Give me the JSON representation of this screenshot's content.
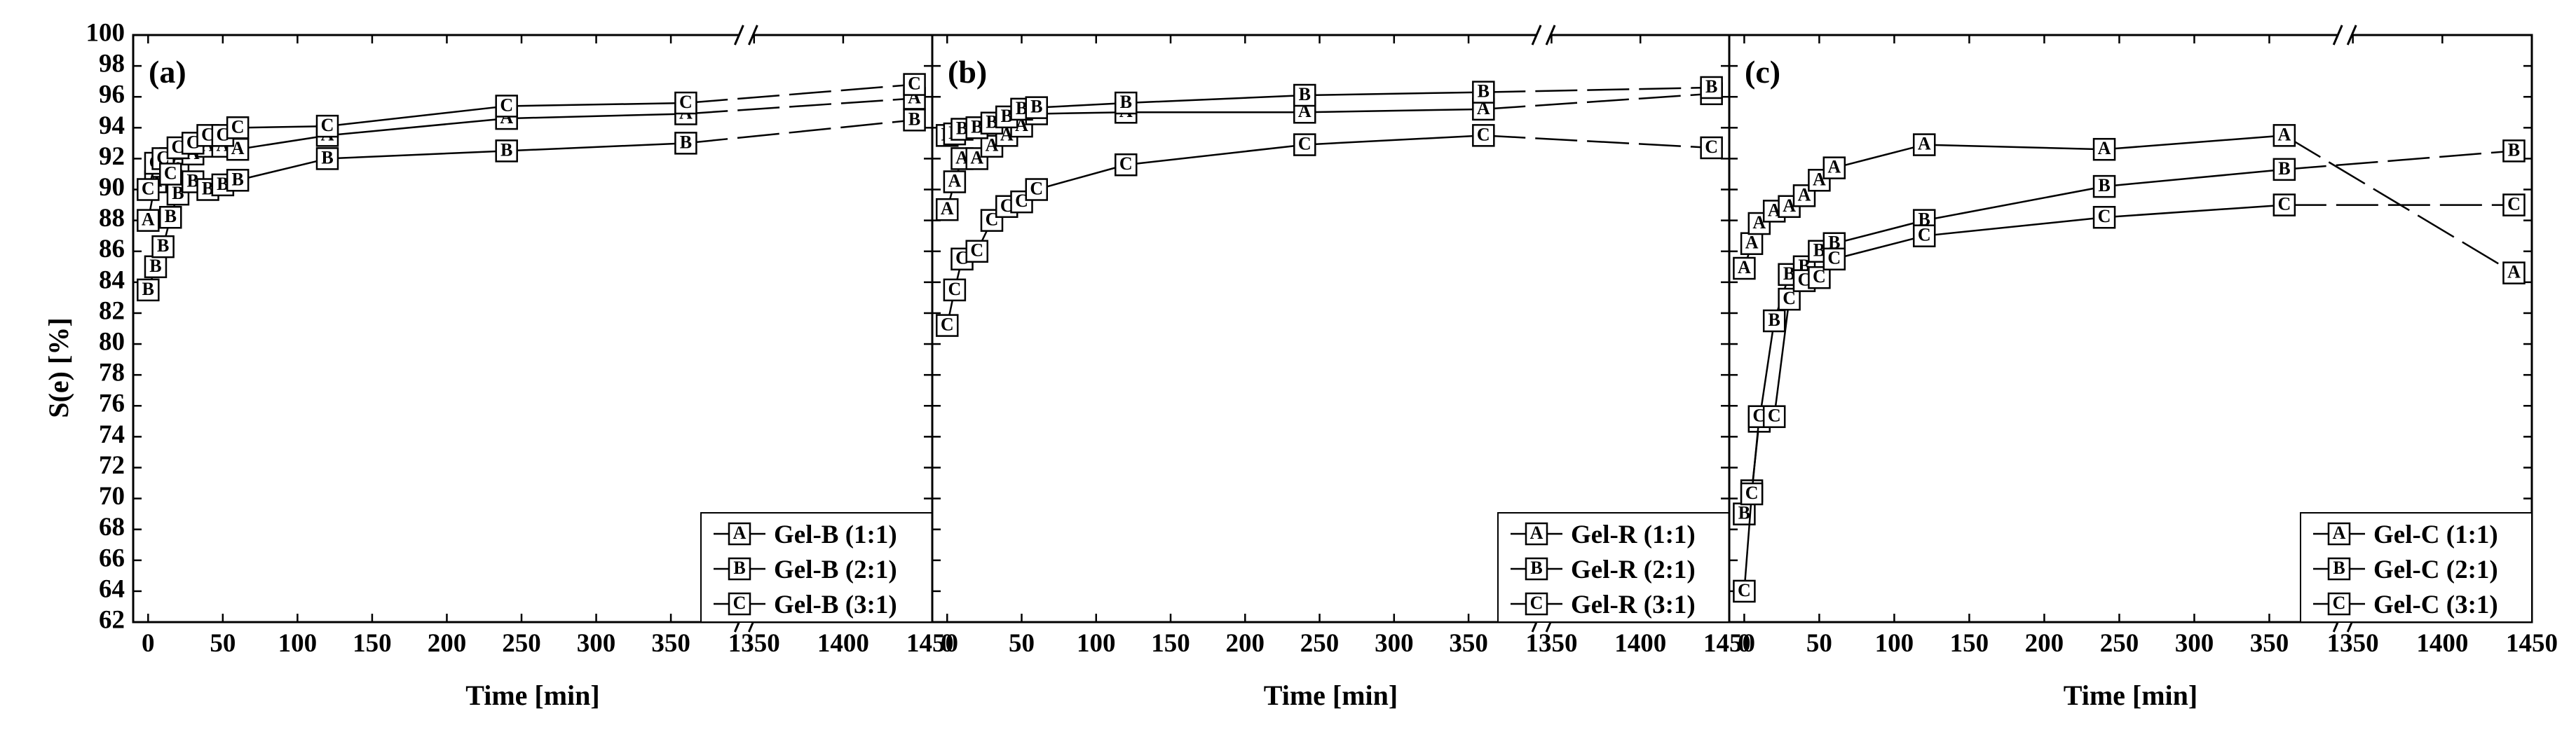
{
  "chart_data": {
    "type": "line",
    "ylabel": "S(e) [%]",
    "xlabel": "Time [min]",
    "ylim": [
      62,
      100
    ],
    "ytick_step": 2,
    "xbreak": {
      "segment1": [
        -10,
        395
      ],
      "segment2": [
        1350,
        1450
      ]
    },
    "xticks_segment1": [
      0,
      50,
      100,
      150,
      200,
      250,
      300,
      350
    ],
    "xticks_segment2": [
      1350,
      1400,
      1450
    ],
    "panels": [
      {
        "tag": "(a)",
        "series": [
          {
            "name": "Gel-B (1:1)",
            "marker": "A",
            "x": [
              0,
              5,
              10,
              15,
              20,
              30,
              40,
              50,
              60,
              120,
              240,
              360,
              1440
            ],
            "y": [
              88.0,
              90.5,
              91.5,
              92.0,
              91.3,
              92.3,
              92.8,
              92.8,
              92.6,
              93.5,
              94.6,
              94.9,
              95.9
            ]
          },
          {
            "name": "Gel-B (2:1)",
            "marker": "B",
            "x": [
              0,
              5,
              10,
              15,
              20,
              30,
              40,
              50,
              60,
              120,
              240,
              360,
              1440
            ],
            "y": [
              83.5,
              85.0,
              86.3,
              88.2,
              89.7,
              90.5,
              90.0,
              90.3,
              90.6,
              92.0,
              92.5,
              93.0,
              94.5
            ]
          },
          {
            "name": "Gel-B (3:1)",
            "marker": "C",
            "x": [
              0,
              5,
              10,
              15,
              20,
              30,
              40,
              50,
              60,
              120,
              240,
              360,
              1440
            ],
            "y": [
              90.0,
              91.7,
              92.0,
              91.0,
              92.7,
              93.0,
              93.5,
              93.5,
              94.0,
              94.1,
              95.4,
              95.6,
              96.8
            ]
          }
        ],
        "legend": [
          "Gel-B (1:1)",
          "Gel-B (2:1)",
          "Gel-B (3:1)"
        ]
      },
      {
        "tag": "(b)",
        "series": [
          {
            "name": "Gel-R (1:1)",
            "marker": "A",
            "x": [
              0,
              5,
              10,
              20,
              30,
              40,
              50,
              60,
              120,
              240,
              360,
              1440
            ],
            "y": [
              88.7,
              90.5,
              92.0,
              92.0,
              92.8,
              93.5,
              94.1,
              94.9,
              95.0,
              95.0,
              95.2,
              96.2
            ]
          },
          {
            "name": "Gel-R (2:1)",
            "marker": "B",
            "x": [
              0,
              5,
              10,
              20,
              30,
              40,
              50,
              60,
              120,
              240,
              360,
              1440
            ],
            "y": [
              93.5,
              93.6,
              93.9,
              94.0,
              94.3,
              94.7,
              95.2,
              95.3,
              95.6,
              96.1,
              96.3,
              96.6
            ]
          },
          {
            "name": "Gel-R (3:1)",
            "marker": "C",
            "x": [
              0,
              5,
              10,
              20,
              30,
              40,
              50,
              60,
              120,
              240,
              360,
              1440
            ],
            "y": [
              81.2,
              83.5,
              85.5,
              86.0,
              88.0,
              88.9,
              89.2,
              90.0,
              91.6,
              92.9,
              93.5,
              92.7
            ]
          }
        ],
        "legend": [
          "Gel-R (1:1)",
          "Gel-R (2:1)",
          "Gel-R (3:1)"
        ]
      },
      {
        "tag": "(c)",
        "series": [
          {
            "name": "Gel-C (1:1)",
            "marker": "A",
            "x": [
              0,
              5,
              10,
              20,
              30,
              40,
              50,
              60,
              120,
              240,
              360,
              1440
            ],
            "y": [
              84.9,
              86.5,
              87.8,
              88.6,
              88.9,
              89.6,
              90.6,
              91.4,
              92.9,
              92.6,
              93.5,
              84.6
            ]
          },
          {
            "name": "Gel-C (2:1)",
            "marker": "B",
            "x": [
              0,
              5,
              10,
              20,
              30,
              40,
              50,
              60,
              120,
              240,
              360,
              1440
            ],
            "y": [
              69.0,
              70.5,
              75.0,
              81.5,
              84.5,
              85.0,
              86.0,
              86.5,
              88.0,
              90.2,
              91.3,
              92.5
            ]
          },
          {
            "name": "Gel-C (3:1)",
            "marker": "C",
            "x": [
              0,
              5,
              10,
              20,
              30,
              40,
              50,
              60,
              120,
              240,
              360,
              1440
            ],
            "y": [
              64.0,
              70.3,
              75.3,
              75.3,
              82.9,
              84.1,
              84.3,
              85.5,
              87.0,
              88.2,
              89.0,
              89.0
            ]
          }
        ],
        "legend": [
          "Gel-C (1:1)",
          "Gel-C (2:1)",
          "Gel-C (3:1)"
        ]
      }
    ]
  }
}
